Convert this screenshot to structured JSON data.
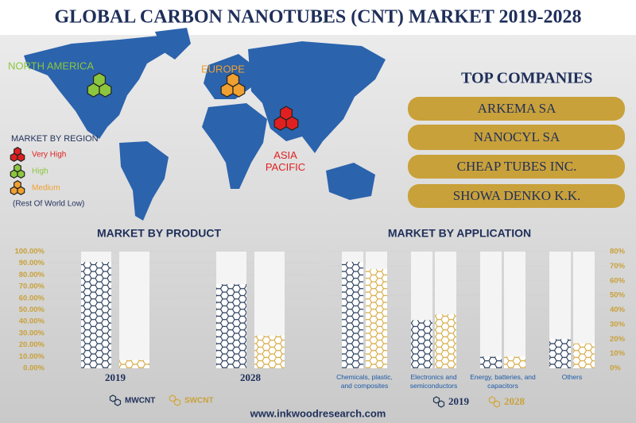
{
  "header": {
    "title": "GLOBAL CARBON NANOTUBES (CNT) MARKET 2019-2028"
  },
  "map": {
    "regions": [
      {
        "label": "NORTH AMERICA",
        "color": "#8cc63f"
      },
      {
        "label": "EUROPE",
        "color": "#f0a030"
      },
      {
        "label": "ASIA PACIFIC",
        "color": "#e02020"
      }
    ]
  },
  "legend": {
    "title": "MARKET BY REGION",
    "items": [
      {
        "label": "Very High",
        "color": "#e02020"
      },
      {
        "label": "High",
        "color": "#8cc63f"
      },
      {
        "label": "Medium",
        "color": "#f0a030"
      }
    ],
    "note": "(Rest Of World Low)"
  },
  "companies": {
    "title": "TOP COMPANIES",
    "items": [
      "ARKEMA SA",
      "NANOCYL SA",
      "CHEAP TUBES INC.",
      "SHOWA DENKO K.K."
    ]
  },
  "footer": "www.inkwoodresearch.com",
  "chart_data": [
    {
      "type": "bar",
      "title": "MARKET BY PRODUCT",
      "categories": [
        "2019",
        "2028"
      ],
      "series": [
        {
          "name": "MWCNT",
          "color": "#1f3554",
          "values": [
            91,
            72
          ]
        },
        {
          "name": "SWCNT",
          "color": "#d4a73c",
          "values": [
            7,
            28
          ]
        }
      ],
      "ylim": [
        0,
        100
      ],
      "yticks": [
        {
          "value": 0,
          "label": "0.00%"
        },
        {
          "value": 10,
          "label": "10.00%"
        },
        {
          "value": 20,
          "label": "20.00%"
        },
        {
          "value": 30,
          "label": "30.00%"
        },
        {
          "value": 40,
          "label": "40.00%"
        },
        {
          "value": 50,
          "label": "50.00%"
        },
        {
          "value": 60,
          "label": "60.00%"
        },
        {
          "value": 70,
          "label": "70.00%"
        },
        {
          "value": 80,
          "label": "80.00%"
        },
        {
          "value": 90,
          "label": "90.00%"
        },
        {
          "value": 100,
          "label": "100.00%"
        }
      ],
      "grid": true
    },
    {
      "type": "bar",
      "title": "MARKET BY APPLICATION",
      "categories": [
        "Chemicals, plastic, and composites",
        "Electronics and semiconductors",
        "Energy, batteries, and capacitors",
        "Others"
      ],
      "series": [
        {
          "name": "2019",
          "color": "#1f3554",
          "values": [
            73,
            33,
            8,
            20
          ]
        },
        {
          "name": "2028",
          "color": "#d4a73c",
          "values": [
            68,
            37,
            8,
            17
          ]
        }
      ],
      "ylim": [
        0,
        80
      ],
      "yticks": [
        {
          "value": 0,
          "label": "0%"
        },
        {
          "value": 10,
          "label": "10%"
        },
        {
          "value": 20,
          "label": "20%"
        },
        {
          "value": 30,
          "label": "30%"
        },
        {
          "value": 40,
          "label": "40%"
        },
        {
          "value": 50,
          "label": "50%"
        },
        {
          "value": 60,
          "label": "60%"
        },
        {
          "value": 70,
          "label": "70%"
        },
        {
          "value": 80,
          "label": "80%"
        }
      ],
      "yaxis_position": "right",
      "grid": true
    }
  ]
}
